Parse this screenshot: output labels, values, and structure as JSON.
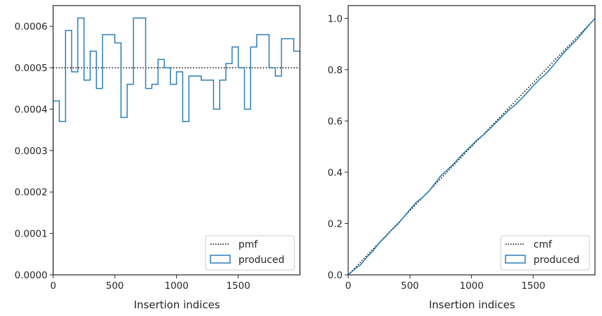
{
  "chart_data": [
    {
      "type": "line",
      "title": "",
      "xlabel": "Insertion indices",
      "ylabel": "",
      "xlim": [
        0,
        2000
      ],
      "ylim": [
        0,
        0.00065
      ],
      "xticks": [
        0,
        500,
        1000,
        1500
      ],
      "xtick_labels": [
        "0",
        "500",
        "1000",
        "1500"
      ],
      "yticks": [
        0,
        0.0001,
        0.0002,
        0.0003,
        0.0004,
        0.0005,
        0.0006
      ],
      "ytick_labels": [
        "0.0000",
        "0.0001",
        "0.0002",
        "0.0003",
        "0.0004",
        "0.0005",
        "0.0006"
      ],
      "grid": false,
      "legend": "lower-right",
      "series": [
        {
          "name": "pmf",
          "style": "dotted",
          "color": "#000000",
          "x": [
            0,
            2000
          ],
          "y": [
            0.0005,
            0.0005
          ]
        },
        {
          "name": "produced",
          "style": "step-histogram",
          "color": "#2a7fb5",
          "bin_width": 50,
          "bin_edges_start": 0,
          "values": [
            0.00042,
            0.00037,
            0.00059,
            0.00049,
            0.00062,
            0.00047,
            0.00054,
            0.00045,
            0.00058,
            0.00058,
            0.00056,
            0.00038,
            0.00046,
            0.00062,
            0.00062,
            0.00045,
            0.00046,
            0.00052,
            0.0005,
            0.00046,
            0.00049,
            0.00037,
            0.00048,
            0.00048,
            0.00047,
            0.00047,
            0.0004,
            0.00047,
            0.00051,
            0.00055,
            0.0005,
            0.0004,
            0.00055,
            0.00058,
            0.00058,
            0.0005,
            0.00048,
            0.00057,
            0.00057,
            0.00054
          ]
        }
      ]
    },
    {
      "type": "line",
      "title": "",
      "xlabel": "Insertion indices",
      "ylabel": "",
      "xlim": [
        0,
        2000
      ],
      "ylim": [
        0,
        1.05
      ],
      "xticks": [
        0,
        500,
        1000,
        1500
      ],
      "xtick_labels": [
        "0",
        "500",
        "1000",
        "1500"
      ],
      "yticks": [
        0,
        0.2,
        0.4,
        0.6,
        0.8,
        1.0
      ],
      "ytick_labels": [
        "0.0",
        "0.2",
        "0.4",
        "0.6",
        "0.8",
        "1.0"
      ],
      "grid": false,
      "legend": "lower-right",
      "series": [
        {
          "name": "cmf",
          "style": "dotted",
          "color": "#000000",
          "x": [
            0,
            2000
          ],
          "y": [
            0,
            1.0
          ]
        },
        {
          "name": "produced",
          "style": "cumulative-step",
          "color": "#2a7fb5"
        }
      ]
    }
  ]
}
